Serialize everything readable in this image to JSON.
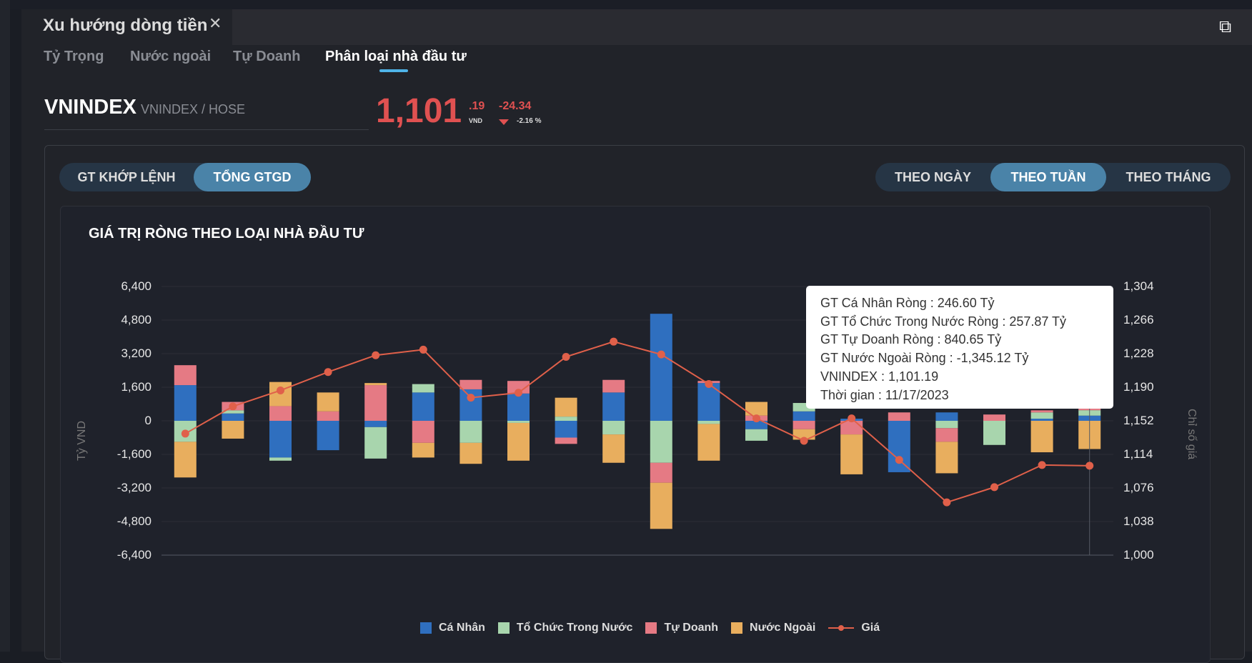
{
  "window": {
    "tab_title": "Xu hướng dòng tiền",
    "close_icon": "close-icon",
    "popout_icon": "external-link-icon"
  },
  "subtabs": [
    {
      "label": "Tỷ Trọng"
    },
    {
      "label": "Nước ngoài"
    },
    {
      "label": "Tự Doanh"
    },
    {
      "label": "Phân loại nhà đầu tư",
      "active": true
    }
  ],
  "symbol": {
    "code": "VNINDEX",
    "exchange": "VNINDEX / HOSE",
    "price_int": "1,101",
    "price_dec": ".19",
    "currency": "VND",
    "change": "-24.34",
    "change_pct": "-2.16 %"
  },
  "value_toggle": [
    {
      "label": "GT KHỚP LỆNH"
    },
    {
      "label": "TỔNG GTGD",
      "active": true
    }
  ],
  "period_toggle": [
    {
      "label": "THEO NGÀY"
    },
    {
      "label": "THEO TUẦN",
      "active": true
    },
    {
      "label": "THEO THÁNG"
    }
  ],
  "tooltip": {
    "lines": [
      "GT Cá Nhân Ròng  : 246.60 Tỷ",
      "GT Tổ Chức Trong Nước Ròng : 257.87 Tỷ",
      "GT Tự Doanh Ròng : 840.65 Tỷ",
      "GT Nước Ngoài Ròng : -1,345.12 Tỷ",
      "VNINDEX : 1,101.19",
      "Thời gian : 11/17/2023"
    ]
  },
  "chart_data": {
    "type": "bar",
    "stacked": true,
    "title": "GIÁ TRỊ RÒNG THEO LOẠI NHÀ ĐẦU TƯ",
    "ylabel": "Tỷ VND",
    "y2label": "Chỉ số giá",
    "ylim": [
      -6400,
      6400
    ],
    "y2lim": [
      1000,
      1304
    ],
    "yticks": [
      "6,400",
      "4,800",
      "3,200",
      "1,600",
      "0",
      "-1,600",
      "-3,200",
      "-4,800",
      "-6,400"
    ],
    "y2ticks": [
      "1,304",
      "1,266",
      "1,228",
      "1,190",
      "1,152",
      "1,114",
      "1,076",
      "1,038",
      "1,000"
    ],
    "grid": true,
    "legend_position": "bottom",
    "series": [
      {
        "name": "Cá Nhân",
        "color": "#2f6fbf",
        "values": [
          1700,
          350,
          -1750,
          -1400,
          -300,
          1350,
          1500,
          1300,
          -800,
          1350,
          5100,
          1800,
          -400,
          450,
          100,
          -2450,
          400,
          0,
          100,
          246.6
        ]
      },
      {
        "name": "Tổ Chức Trong Nước",
        "color": "#a8d5ad",
        "values": [
          -1000,
          150,
          -150,
          0,
          -1500,
          400,
          -1050,
          -100,
          200,
          -650,
          -2000,
          -150,
          -550,
          400,
          0,
          0,
          -350,
          -1150,
          300,
          257.87
        ]
      },
      {
        "name": "Tự Doanh",
        "color": "#e57a84",
        "values": [
          950,
          400,
          700,
          450,
          1700,
          -1050,
          450,
          600,
          -300,
          600,
          -950,
          100,
          250,
          -400,
          -650,
          400,
          -650,
          300,
          100,
          840.65
        ]
      },
      {
        "name": "Nước Ngoài",
        "color": "#e8ae5e",
        "values": [
          -1700,
          -850,
          1150,
          900,
          100,
          -700,
          -1000,
          -1800,
          900,
          -1350,
          -2200,
          -1750,
          650,
          -500,
          -1900,
          0,
          -1500,
          0,
          -1500,
          -1345.12
        ]
      }
    ],
    "line": {
      "name": "Giá",
      "color": "#e0604a",
      "axis": "right",
      "values": [
        1137.5,
        1168.3,
        1186.4,
        1207.2,
        1226.2,
        1232.5,
        1178.2,
        1183.7,
        1224.4,
        1241.6,
        1227.1,
        1193.6,
        1154.7,
        1129.4,
        1154.7,
        1107.7,
        1059.7,
        1076.9,
        1102.0,
        1101.19
      ]
    }
  }
}
